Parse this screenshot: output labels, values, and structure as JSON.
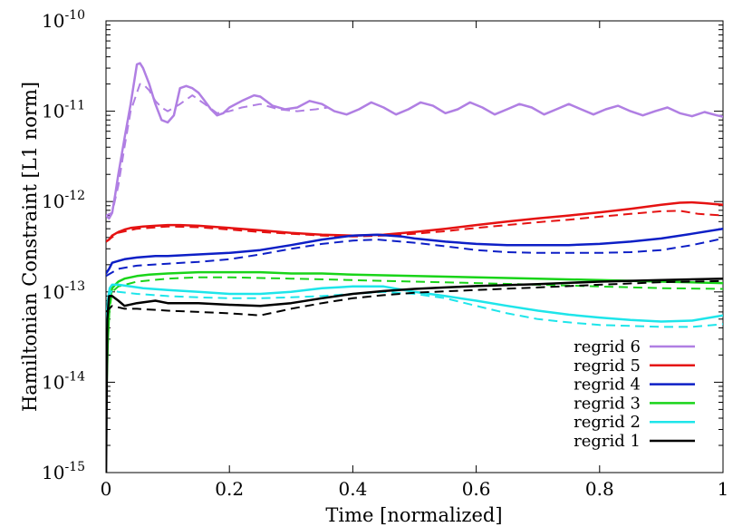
{
  "chart_data": {
    "type": "line",
    "title": "",
    "xlabel": "Time [normalized]",
    "ylabel": "Hamiltonian Constraint [L1 norm]",
    "xlim": [
      0,
      1
    ],
    "ylim": [
      1e-15,
      1e-10
    ],
    "yscale": "log",
    "grid": false,
    "legend_position": "bottom-right",
    "x_ticks": [
      {
        "value": 0,
        "label": "0"
      },
      {
        "value": 0.2,
        "label": "0.2"
      },
      {
        "value": 0.4,
        "label": "0.4"
      },
      {
        "value": 0.6,
        "label": "0.6"
      },
      {
        "value": 0.8,
        "label": "0.8"
      },
      {
        "value": 1,
        "label": "1"
      }
    ],
    "y_ticks": [
      {
        "value": 1e-15,
        "base": "10",
        "exp": "-15"
      },
      {
        "value": 1e-14,
        "base": "10",
        "exp": "-14"
      },
      {
        "value": 1e-13,
        "base": "10",
        "exp": "-13"
      },
      {
        "value": 1e-12,
        "base": "10",
        "exp": "-12"
      },
      {
        "value": 1e-11,
        "base": "10",
        "exp": "-11"
      },
      {
        "value": 1e-10,
        "base": "10",
        "exp": "-10"
      }
    ],
    "series": [
      {
        "name": "regrid 6",
        "color": "#b07fe3",
        "style": "solid",
        "x": [
          0.0,
          0.005,
          0.01,
          0.015,
          0.02,
          0.03,
          0.04,
          0.05,
          0.055,
          0.06,
          0.07,
          0.08,
          0.09,
          0.1,
          0.11,
          0.12,
          0.13,
          0.14,
          0.15,
          0.16,
          0.17,
          0.18,
          0.19,
          0.2,
          0.22,
          0.24,
          0.25,
          0.27,
          0.29,
          0.31,
          0.33,
          0.35,
          0.37,
          0.39,
          0.41,
          0.43,
          0.45,
          0.47,
          0.49,
          0.51,
          0.53,
          0.55,
          0.57,
          0.59,
          0.61,
          0.63,
          0.65,
          0.67,
          0.69,
          0.71,
          0.73,
          0.75,
          0.77,
          0.79,
          0.81,
          0.83,
          0.85,
          0.87,
          0.89,
          0.91,
          0.93,
          0.95,
          0.97,
          0.99,
          1.0
        ],
        "y": [
          7e-13,
          6.5e-13,
          7.5e-13,
          1.2e-12,
          2e-12,
          5e-12,
          1.2e-11,
          3.3e-11,
          3.4e-11,
          3e-11,
          2e-11,
          1.2e-11,
          8e-12,
          7.5e-12,
          9e-12,
          1.8e-11,
          1.9e-11,
          1.8e-11,
          1.6e-11,
          1.3e-11,
          1.05e-11,
          9e-12,
          9.5e-12,
          1.1e-11,
          1.3e-11,
          1.5e-11,
          1.45e-11,
          1.15e-11,
          1.05e-11,
          1.1e-11,
          1.3e-11,
          1.2e-11,
          1e-11,
          9.2e-12,
          1.05e-11,
          1.25e-11,
          1.1e-11,
          9.2e-12,
          1.05e-11,
          1.25e-11,
          1.15e-11,
          9.5e-12,
          1.05e-11,
          1.25e-11,
          1.1e-11,
          9.2e-12,
          1.05e-11,
          1.2e-11,
          1.1e-11,
          9.2e-12,
          1.05e-11,
          1.2e-11,
          1.05e-11,
          9.2e-12,
          1.05e-11,
          1.15e-11,
          1e-11,
          9e-12,
          1e-11,
          1.1e-11,
          9.5e-12,
          8.8e-12,
          9.8e-12,
          9e-12,
          8.7e-12
        ]
      },
      {
        "name": "",
        "color": "#b07fe3",
        "style": "dashed",
        "x": [
          0.0,
          0.01,
          0.02,
          0.03,
          0.04,
          0.05,
          0.055,
          0.06,
          0.07,
          0.08,
          0.09,
          0.1,
          0.12,
          0.14,
          0.16,
          0.18,
          0.2,
          0.22,
          0.25,
          0.28,
          0.31,
          0.34,
          0.36
        ],
        "y": [
          7e-13,
          7.5e-13,
          1.5e-12,
          4e-12,
          1e-11,
          1.6e-11,
          2e-11,
          2e-11,
          1.7e-11,
          1.3e-11,
          1.1e-11,
          1e-11,
          1.2e-11,
          1.5e-11,
          1.2e-11,
          9.5e-12,
          1e-11,
          1.1e-11,
          1.2e-11,
          1.05e-11,
          1e-11,
          1.05e-11,
          1.1e-11
        ]
      },
      {
        "name": "regrid 5",
        "color": "#e51212",
        "style": "solid",
        "x": [
          0.0,
          0.005,
          0.01,
          0.02,
          0.03,
          0.04,
          0.05,
          0.06,
          0.08,
          0.1,
          0.12,
          0.15,
          0.2,
          0.25,
          0.3,
          0.35,
          0.4,
          0.45,
          0.5,
          0.55,
          0.6,
          0.65,
          0.7,
          0.75,
          0.8,
          0.85,
          0.9,
          0.93,
          0.95,
          0.97,
          1.0
        ],
        "y": [
          3.6e-13,
          3.8e-13,
          4.2e-13,
          4.6e-13,
          4.9e-13,
          5.1e-13,
          5.2e-13,
          5.3e-13,
          5.4e-13,
          5.5e-13,
          5.5e-13,
          5.4e-13,
          5.1e-13,
          4.8e-13,
          4.5e-13,
          4.3e-13,
          4.2e-13,
          4.3e-13,
          4.6e-13,
          5e-13,
          5.5e-13,
          6e-13,
          6.5e-13,
          7e-13,
          7.6e-13,
          8.3e-13,
          9.2e-13,
          9.7e-13,
          9.8e-13,
          9.6e-13,
          9.2e-13
        ]
      },
      {
        "name": "",
        "color": "#e51212",
        "style": "dashed",
        "x": [
          0.0,
          0.02,
          0.05,
          0.1,
          0.15,
          0.2,
          0.25,
          0.3,
          0.35,
          0.4,
          0.45,
          0.5,
          0.55,
          0.6,
          0.65,
          0.7,
          0.75,
          0.8,
          0.85,
          0.9,
          0.93,
          0.96,
          1.0
        ],
        "y": [
          3.6e-13,
          4.5e-13,
          5e-13,
          5.3e-13,
          5.2e-13,
          4.9e-13,
          4.6e-13,
          4.4e-13,
          4.2e-13,
          4.1e-13,
          4.2e-13,
          4.4e-13,
          4.7e-13,
          5.1e-13,
          5.5e-13,
          5.9e-13,
          6.3e-13,
          6.8e-13,
          7.3e-13,
          7.8e-13,
          7.9e-13,
          7.3e-13,
          7e-13
        ]
      },
      {
        "name": "regrid 4",
        "color": "#0d1fc6",
        "style": "solid",
        "x": [
          0.0,
          0.005,
          0.01,
          0.02,
          0.03,
          0.05,
          0.08,
          0.1,
          0.15,
          0.2,
          0.25,
          0.3,
          0.35,
          0.4,
          0.44,
          0.48,
          0.5,
          0.55,
          0.6,
          0.65,
          0.7,
          0.75,
          0.8,
          0.85,
          0.9,
          0.95,
          1.0
        ],
        "y": [
          1.6e-13,
          1.8e-13,
          2.1e-13,
          2.2e-13,
          2.3e-13,
          2.4e-13,
          2.5e-13,
          2.5e-13,
          2.6e-13,
          2.7e-13,
          2.9e-13,
          3.3e-13,
          3.8e-13,
          4.2e-13,
          4.3e-13,
          4.1e-13,
          3.9e-13,
          3.6e-13,
          3.4e-13,
          3.3e-13,
          3.3e-13,
          3.3e-13,
          3.4e-13,
          3.6e-13,
          3.9e-13,
          4.4e-13,
          5e-13
        ]
      },
      {
        "name": "",
        "color": "#0d1fc6",
        "style": "dashed",
        "x": [
          0.0,
          0.02,
          0.05,
          0.1,
          0.15,
          0.2,
          0.25,
          0.3,
          0.35,
          0.4,
          0.44,
          0.5,
          0.55,
          0.6,
          0.65,
          0.7,
          0.75,
          0.8,
          0.85,
          0.9,
          0.95,
          1.0
        ],
        "y": [
          1.5e-13,
          1.8e-13,
          1.95e-13,
          2.05e-13,
          2.15e-13,
          2.3e-13,
          2.6e-13,
          3e-13,
          3.4e-13,
          3.7e-13,
          3.8e-13,
          3.5e-13,
          3.2e-13,
          2.9e-13,
          2.75e-13,
          2.7e-13,
          2.7e-13,
          2.7e-13,
          2.75e-13,
          2.9e-13,
          3.3e-13,
          3.9e-13
        ]
      },
      {
        "name": "regrid 3",
        "color": "#19d419",
        "style": "solid",
        "x": [
          0.0,
          0.003,
          0.006,
          0.01,
          0.015,
          0.02,
          0.03,
          0.05,
          0.07,
          0.1,
          0.15,
          0.2,
          0.25,
          0.3,
          0.35,
          0.4,
          0.5,
          0.6,
          0.7,
          0.8,
          0.9,
          1.0
        ],
        "y": [
          5e-15,
          3e-14,
          8e-14,
          1.1e-13,
          1.2e-13,
          1.3e-13,
          1.4e-13,
          1.5e-13,
          1.55e-13,
          1.6e-13,
          1.65e-13,
          1.65e-13,
          1.65e-13,
          1.6e-13,
          1.6e-13,
          1.55e-13,
          1.5e-13,
          1.45e-13,
          1.4e-13,
          1.35e-13,
          1.3e-13,
          1.25e-13
        ]
      },
      {
        "name": "",
        "color": "#19d419",
        "style": "dashed",
        "x": [
          0.0,
          0.005,
          0.01,
          0.02,
          0.05,
          0.1,
          0.15,
          0.2,
          0.3,
          0.4,
          0.5,
          0.6,
          0.7,
          0.8,
          0.9,
          1.0
        ],
        "y": [
          8e-15,
          6e-14,
          1e-13,
          1.15e-13,
          1.3e-13,
          1.4e-13,
          1.45e-13,
          1.45e-13,
          1.4e-13,
          1.35e-13,
          1.3e-13,
          1.25e-13,
          1.2e-13,
          1.15e-13,
          1.1e-13,
          1.08e-13
        ]
      },
      {
        "name": "regrid 2",
        "color": "#1ee5ea",
        "style": "solid",
        "x": [
          0.0,
          0.003,
          0.006,
          0.01,
          0.02,
          0.04,
          0.06,
          0.1,
          0.15,
          0.2,
          0.25,
          0.3,
          0.35,
          0.4,
          0.45,
          0.5,
          0.55,
          0.6,
          0.65,
          0.7,
          0.75,
          0.8,
          0.85,
          0.9,
          0.95,
          1.0
        ],
        "y": [
          4e-14,
          8e-14,
          1.1e-13,
          1.2e-13,
          1.2e-13,
          1.15e-13,
          1.1e-13,
          1.05e-13,
          1e-13,
          9.5e-14,
          9.5e-14,
          1e-13,
          1.1e-13,
          1.15e-13,
          1.15e-13,
          1e-13,
          9e-14,
          8e-14,
          7e-14,
          6.2e-14,
          5.6e-14,
          5.2e-14,
          4.9e-14,
          4.7e-14,
          4.8e-14,
          5.5e-14
        ]
      },
      {
        "name": "",
        "color": "#1ee5ea",
        "style": "dashed",
        "x": [
          0.0,
          0.005,
          0.01,
          0.02,
          0.05,
          0.1,
          0.15,
          0.2,
          0.25,
          0.3,
          0.35,
          0.4,
          0.45,
          0.5,
          0.55,
          0.6,
          0.65,
          0.7,
          0.75,
          0.8,
          0.85,
          0.9,
          0.95,
          1.0
        ],
        "y": [
          4e-14,
          9e-14,
          1.05e-13,
          1e-13,
          9.5e-14,
          9e-14,
          8.7e-14,
          8.5e-14,
          8.5e-14,
          8.7e-14,
          9e-14,
          9.5e-14,
          1e-13,
          9.5e-14,
          8.5e-14,
          7e-14,
          5.8e-14,
          5e-14,
          4.6e-14,
          4.3e-14,
          4.2e-14,
          4.1e-14,
          4.1e-14,
          4.4e-14
        ]
      },
      {
        "name": "regrid 1",
        "color": "#000000",
        "style": "solid",
        "x": [
          0.0,
          0.002,
          0.005,
          0.01,
          0.02,
          0.03,
          0.05,
          0.08,
          0.1,
          0.15,
          0.2,
          0.25,
          0.3,
          0.35,
          0.4,
          0.45,
          0.5,
          0.55,
          0.6,
          0.7,
          0.8,
          0.9,
          1.0
        ],
        "y": [
          8e-16,
          5e-14,
          9e-14,
          9e-14,
          8e-14,
          7e-14,
          7.5e-14,
          8e-14,
          7.5e-14,
          7.5e-14,
          7.2e-14,
          7e-14,
          7.5e-14,
          8.5e-14,
          9.5e-14,
          1.02e-13,
          1.08e-13,
          1.12e-13,
          1.16e-13,
          1.22e-13,
          1.3e-13,
          1.35e-13,
          1.4e-13
        ]
      },
      {
        "name": "",
        "color": "#000000",
        "style": "dashed",
        "x": [
          0.0,
          0.01,
          0.03,
          0.05,
          0.1,
          0.15,
          0.2,
          0.25,
          0.3,
          0.35,
          0.4,
          0.45,
          0.5,
          0.6,
          0.7,
          0.8,
          0.9,
          1.0
        ],
        "y": [
          6e-14,
          7e-14,
          6.5e-14,
          6.5e-14,
          6.2e-14,
          6e-14,
          5.8e-14,
          5.5e-14,
          6.5e-14,
          7.5e-14,
          8.5e-14,
          9.2e-14,
          9.8e-14,
          1.05e-13,
          1.12e-13,
          1.2e-13,
          1.28e-13,
          1.32e-13
        ]
      }
    ]
  }
}
